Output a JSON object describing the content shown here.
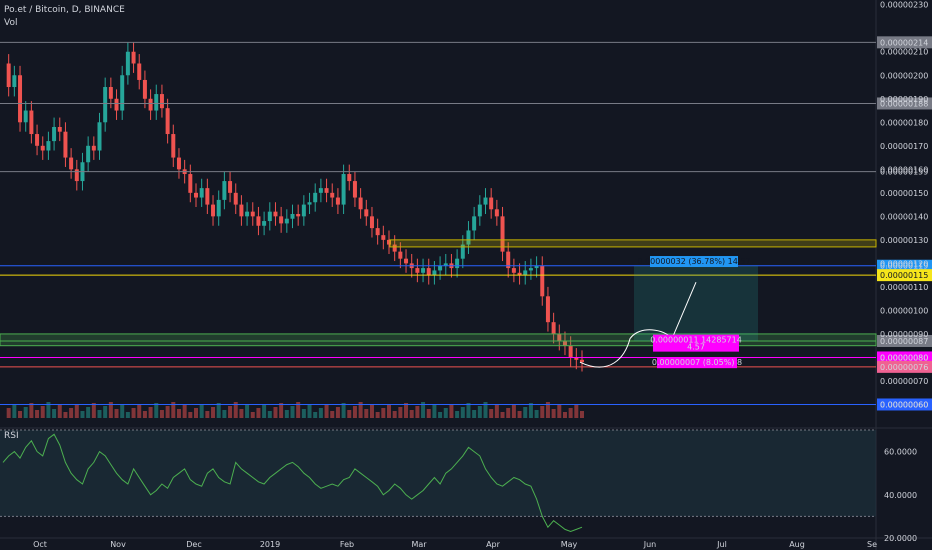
{
  "header": {
    "title": "Po.et / Bitcoin, D, BINANCE",
    "volume_label": "Vol"
  },
  "rsi_pane": {
    "label": "RSI"
  },
  "chart_data": {
    "type": "candlestick",
    "price_axis": {
      "ticks": [
        "0.00000230",
        "0.00000210",
        "0.00000200",
        "0.00000190",
        "0.00000180",
        "0.00000170",
        "0.00000160",
        "0.00000150",
        "0.00000140",
        "0.00000130",
        "0.00000120",
        "0.00000110",
        "0.00000100",
        "0.00000090",
        "0.00000080",
        "0.00000070",
        "0.00000060",
        "0.00000050"
      ],
      "range": [
        5e-07,
        2.32e-06
      ]
    },
    "rsi_axis": {
      "ticks": [
        "60.0000",
        "40.0000",
        "20.0000"
      ],
      "range": [
        20,
        70
      ]
    },
    "time_axis": {
      "ticks": [
        "Oct",
        "Nov",
        "Dec",
        "2019",
        "Feb",
        "Mar",
        "Apr",
        "May",
        "Jun",
        "Jul",
        "Aug",
        "Se"
      ]
    },
    "horizontal_levels": [
      {
        "value": 2.14e-06,
        "label": "0.00000214",
        "color": "#787b86",
        "label_bg": "#787b86"
      },
      {
        "value": 1.88e-06,
        "label": "0.00000188",
        "color": "#787b86",
        "label_bg": "#787b86"
      },
      {
        "value": 1.59e-06,
        "label": "0.00000159",
        "color": "#787b86",
        "label_bg": "#131722"
      },
      {
        "value": 1.19e-06,
        "label": "0.00000119",
        "color": "#2962ff",
        "label_bg": "#2196f3"
      },
      {
        "value": 1.15e-06,
        "label": "0.00000115",
        "color": "#f5d90a",
        "label_bg": "#f5e51b"
      },
      {
        "value": 8.7e-07,
        "label": "0.00000087",
        "color": "#4caf50",
        "label_bg": "#787b86"
      },
      {
        "value": 8e-07,
        "label": "0.00000080",
        "color": "#ff00ff",
        "label_bg": "#ff00ff"
      },
      {
        "value": 7.6e-07,
        "label": "0.00000076",
        "color": "#ef5350",
        "label_bg": "#f06292"
      },
      {
        "value": 6e-07,
        "label": "0.00000060",
        "color": "#2962ff",
        "label_bg": "#2962ff"
      }
    ],
    "annotations": [
      {
        "text": "0.00000032 (36.78%) 14.57",
        "color": "#2196f3"
      },
      {
        "text": "0.00000011 14285714",
        "text2": "4.57",
        "color": "#ff00ff"
      },
      {
        "text": "0.00000007 (8.05%) 8",
        "color": "#ff00ff"
      }
    ],
    "ohlc_points": [
      205,
      195,
      200,
      180,
      185,
      175,
      170,
      168,
      172,
      178,
      176,
      165,
      160,
      155,
      163,
      170,
      168,
      180,
      195,
      190,
      185,
      200,
      210,
      205,
      198,
      190,
      185,
      192,
      186,
      175,
      165,
      160,
      158,
      150,
      148,
      152,
      145,
      140,
      147,
      155,
      150,
      145,
      140,
      142,
      140,
      136,
      138,
      142,
      140,
      137,
      139,
      141,
      140,
      145,
      146,
      150,
      152,
      150,
      148,
      145,
      158,
      155,
      148,
      143,
      140,
      135,
      132,
      130,
      128,
      125,
      122,
      120,
      118,
      116,
      118,
      115,
      117,
      119,
      120,
      118,
      122,
      128,
      134,
      140,
      145,
      148,
      143,
      140,
      125,
      118,
      116,
      115,
      117,
      118,
      119,
      106,
      95,
      90,
      87,
      85,
      80,
      79,
      78
    ],
    "rsi_points": [
      55,
      58,
      60,
      57,
      62,
      65,
      60,
      58,
      66,
      68,
      63,
      55,
      50,
      47,
      45,
      52,
      55,
      60,
      58,
      54,
      50,
      47,
      45,
      52,
      48,
      44,
      40,
      42,
      45,
      43,
      48,
      50,
      52,
      47,
      45,
      44,
      50,
      52,
      48,
      46,
      45,
      55,
      52,
      50,
      48,
      46,
      45,
      48,
      50,
      52,
      54,
      55,
      53,
      50,
      48,
      45,
      43,
      44,
      45,
      44,
      47,
      48,
      52,
      50,
      48,
      46,
      44,
      40,
      42,
      45,
      43,
      40,
      38,
      40,
      42,
      45,
      48,
      45,
      50,
      52,
      55,
      58,
      62,
      60,
      58,
      52,
      48,
      45,
      44,
      46,
      48,
      47,
      45,
      44,
      38,
      30,
      25,
      28,
      26,
      24,
      23,
      24,
      25
    ]
  }
}
